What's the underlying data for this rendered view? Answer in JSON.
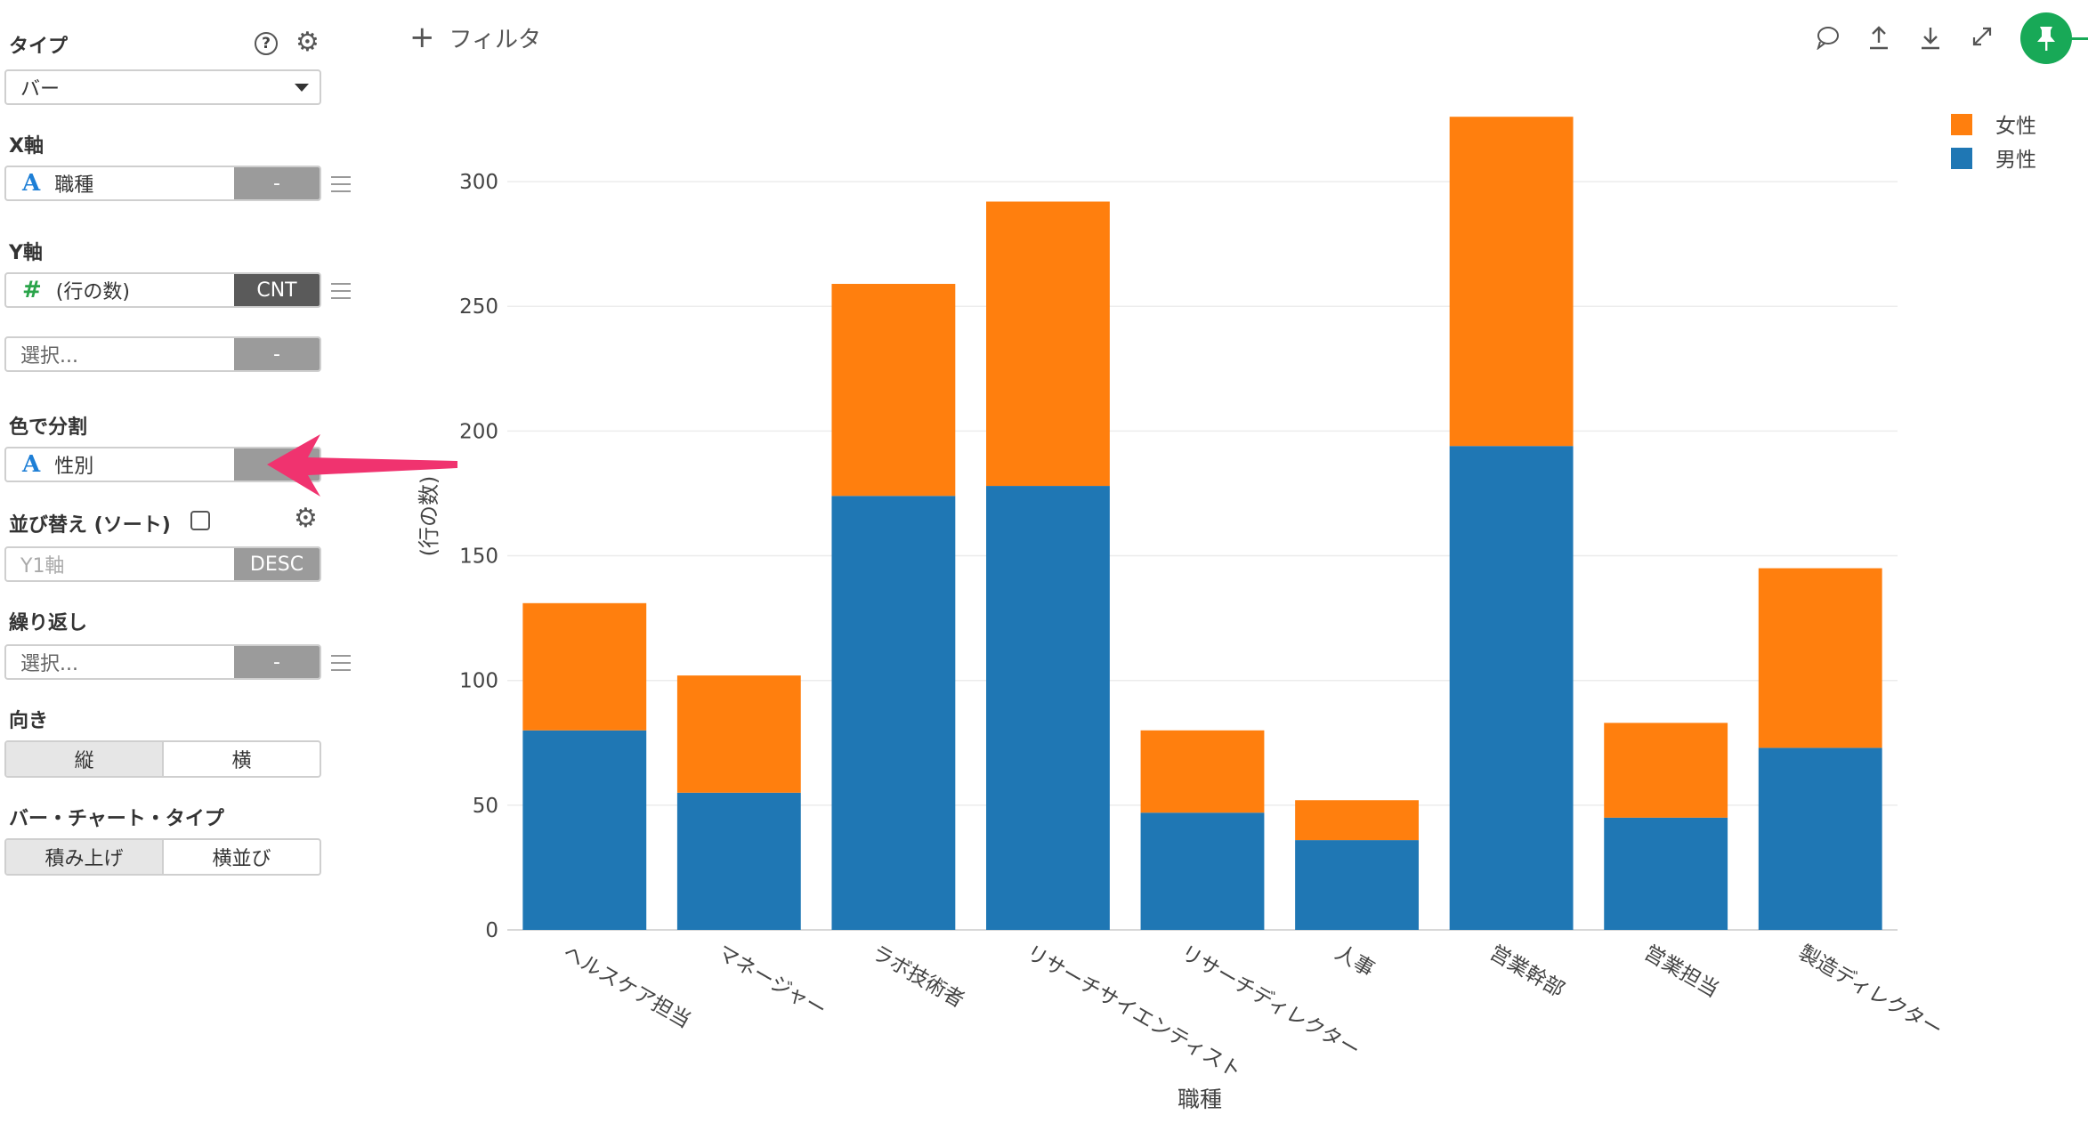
{
  "panel": {
    "type_label": "タイプ",
    "type_value": "バー",
    "x_label": "X軸",
    "x_field": "職種",
    "x_btn": "-",
    "y_label": "Y軸",
    "y_field": "(行の数)",
    "y_btn": "CNT",
    "y2_placeholder": "選択...",
    "y2_btn": "-",
    "color_label": "色で分割",
    "color_field": "性別",
    "sort_label": "並び替え (ソート)",
    "sort_placeholder": "Y1軸",
    "sort_btn": "DESC",
    "repeat_label": "繰り返し",
    "repeat_placeholder": "選択...",
    "repeat_btn": "-",
    "orient_label": "向き",
    "orient_options": [
      "縦",
      "横"
    ],
    "bartype_label": "バー・チャート・タイプ",
    "bartype_options": [
      "積み上げ",
      "横並び"
    ]
  },
  "toolbar": {
    "filter_label": "フィルタ",
    "icons": [
      "comment-icon",
      "upload-icon",
      "download-icon",
      "expand-icon",
      "pin-icon"
    ]
  },
  "colors": {
    "female": "#ff7f0e",
    "male": "#1f77b4",
    "accent": "#18a957",
    "arrow": "#f0336f"
  },
  "chart_data": {
    "type": "bar",
    "stacked": true,
    "categories": [
      "ヘルスケア担当",
      "マネージャー",
      "ラボ技術者",
      "リサーチサイエンティスト",
      "リサーチディレクター",
      "人事",
      "営業幹部",
      "営業担当",
      "製造ディレクター"
    ],
    "series": [
      {
        "name": "男性",
        "color": "#1f77b4",
        "values": [
          80,
          55,
          174,
          178,
          47,
          36,
          194,
          45,
          73
        ]
      },
      {
        "name": "女性",
        "color": "#ff7f0e",
        "values": [
          51,
          47,
          85,
          114,
          33,
          16,
          132,
          38,
          72
        ]
      }
    ],
    "xlabel": "職種",
    "ylabel": "(行の数)",
    "ylim": [
      0,
      330
    ],
    "yticks": [
      0,
      50,
      100,
      150,
      200,
      250,
      300
    ],
    "legend": [
      "女性",
      "男性"
    ],
    "legend_position": "top-right",
    "grid": true
  }
}
